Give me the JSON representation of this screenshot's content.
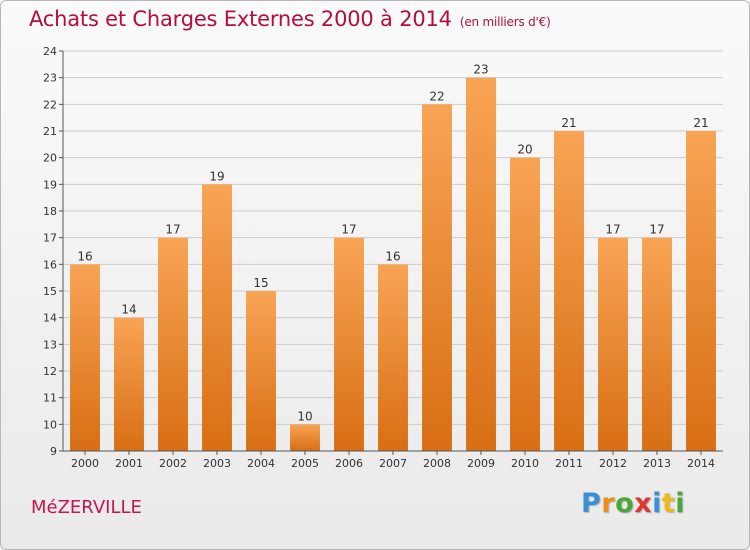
{
  "header": {
    "title": "Achats et Charges Externes 2000 à 2014",
    "subtitle": "(en milliers d'€)"
  },
  "footer": {
    "town": "MéZERVILLE",
    "logo_letters": [
      {
        "char": "P",
        "color": "#3a8fd6"
      },
      {
        "char": "r",
        "color": "#f08c1a"
      },
      {
        "char": "o",
        "color": "#4aa83a"
      },
      {
        "char": "x",
        "color": "#e0372c"
      },
      {
        "char": "i",
        "color": "#3a8fd6"
      },
      {
        "char": "t",
        "color": "#f0b81a"
      },
      {
        "char": "i",
        "color": "#4aa83a"
      }
    ]
  },
  "colors": {
    "bar_top": "#f8a455",
    "bar_bottom": "#d86e14",
    "axis_text": "#333333",
    "grid": "#cccccc"
  },
  "chart_data": {
    "type": "bar",
    "categories": [
      "2000",
      "2001",
      "2002",
      "2003",
      "2004",
      "2005",
      "2006",
      "2007",
      "2008",
      "2009",
      "2010",
      "2011",
      "2012",
      "2013",
      "2014"
    ],
    "values": [
      16,
      14,
      17,
      19,
      15,
      10,
      17,
      16,
      22,
      23,
      20,
      21,
      17,
      17,
      21
    ],
    "ylim": [
      9,
      24
    ],
    "yticks": [
      9,
      10,
      11,
      12,
      13,
      14,
      15,
      16,
      17,
      18,
      19,
      20,
      21,
      22,
      23,
      24
    ],
    "grid": true,
    "legend": "none"
  }
}
